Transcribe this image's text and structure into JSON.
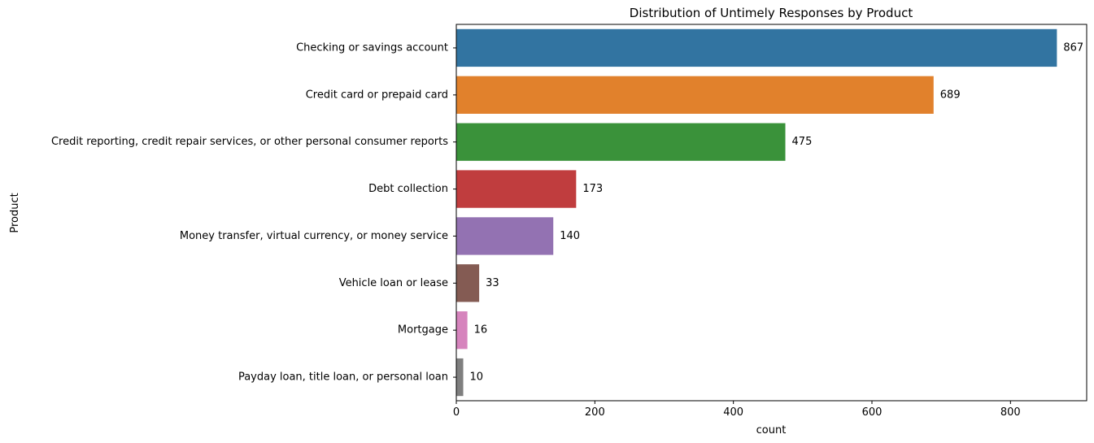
{
  "chart_data": {
    "type": "bar",
    "orientation": "horizontal",
    "title": "Distribution of Untimely Responses by Product",
    "xlabel": "count",
    "ylabel": "Product",
    "categories": [
      "Checking or savings account",
      "Credit card or prepaid card",
      "Credit reporting, credit repair services, or other personal consumer reports",
      "Debt collection",
      "Money transfer, virtual currency, or money service",
      "Vehicle loan or lease",
      "Mortgage",
      "Payday loan, title loan, or personal loan"
    ],
    "values": [
      867,
      689,
      475,
      173,
      140,
      33,
      16,
      10
    ],
    "data_labels": [
      "867",
      "689",
      "475",
      "173",
      "140",
      "33",
      "16",
      "10"
    ],
    "colors": [
      "#3274a1",
      "#e1812c",
      "#3a923a",
      "#c03d3e",
      "#9372b2",
      "#845b53",
      "#d684bd",
      "#7f7f7f"
    ],
    "xlim": [
      0,
      910
    ],
    "xticks": [
      0,
      200,
      400,
      600,
      800
    ],
    "xtick_labels": [
      "0",
      "200",
      "400",
      "600",
      "800"
    ],
    "grid": false,
    "legend": "none"
  }
}
